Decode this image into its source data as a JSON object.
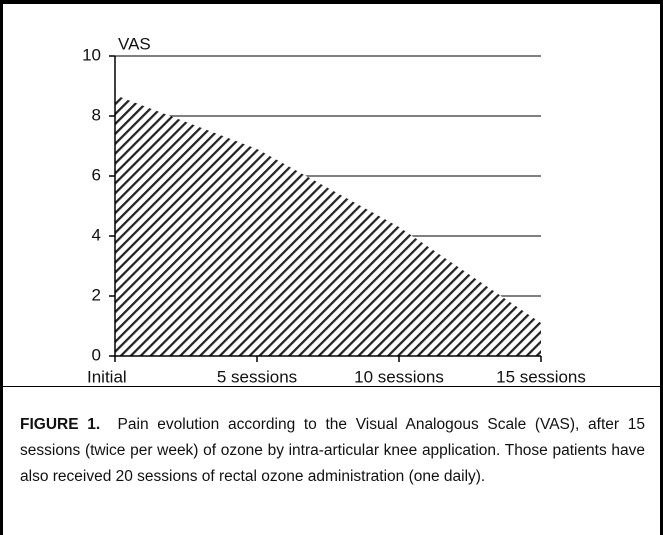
{
  "chart_data": {
    "type": "area",
    "y_label": "VAS",
    "categories": [
      "Initial",
      "5 sessions",
      "10 sessions",
      "15 sessions"
    ],
    "values": [
      8.7,
      6.9,
      4.3,
      1.1
    ],
    "color": "#222222",
    "ylim": [
      0,
      10
    ],
    "yticks": [
      0,
      2,
      4,
      6,
      8,
      10
    ],
    "grid": true,
    "caption_label": "FIGURE 1.",
    "caption_text": "Pain evolution according to the Visual Analogous Scale (VAS), after 15 sessions (twice per week) of ozone by intra-articular knee application. Those patients have also received 20 sessions of rectal ozone administration (one daily)."
  }
}
